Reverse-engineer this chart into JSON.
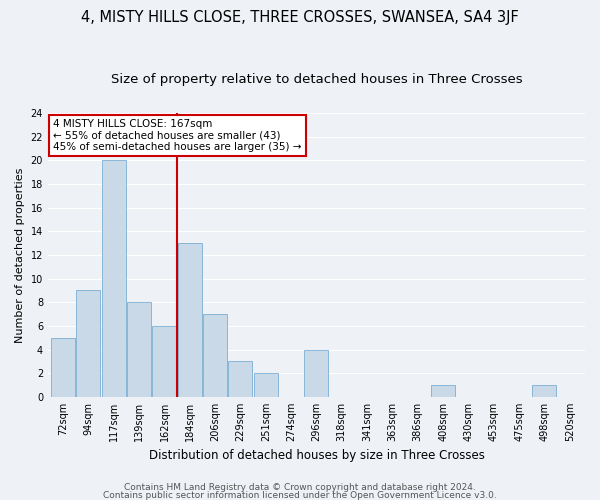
{
  "title": "4, MISTY HILLS CLOSE, THREE CROSSES, SWANSEA, SA4 3JF",
  "subtitle": "Size of property relative to detached houses in Three Crosses",
  "xlabel": "Distribution of detached houses by size in Three Crosses",
  "ylabel": "Number of detached properties",
  "categories": [
    "72sqm",
    "94sqm",
    "117sqm",
    "139sqm",
    "162sqm",
    "184sqm",
    "206sqm",
    "229sqm",
    "251sqm",
    "274sqm",
    "296sqm",
    "318sqm",
    "341sqm",
    "363sqm",
    "386sqm",
    "408sqm",
    "430sqm",
    "453sqm",
    "475sqm",
    "498sqm",
    "520sqm"
  ],
  "values": [
    5,
    9,
    20,
    8,
    6,
    13,
    7,
    3,
    2,
    0,
    4,
    0,
    0,
    0,
    0,
    1,
    0,
    0,
    0,
    1,
    0
  ],
  "bar_color": "#c9d9e8",
  "bar_edge_color": "#7bafd4",
  "vline_index": 4.5,
  "vline_color": "#cc0000",
  "annotation_line1": "4 MISTY HILLS CLOSE: 167sqm",
  "annotation_line2": "← 55% of detached houses are smaller (43)",
  "annotation_line3": "45% of semi-detached houses are larger (35) →",
  "annotation_box_color": "#ffffff",
  "annotation_box_edge": "#cc0000",
  "ylim": [
    0,
    24
  ],
  "yticks": [
    0,
    2,
    4,
    6,
    8,
    10,
    12,
    14,
    16,
    18,
    20,
    22,
    24
  ],
  "footer_line1": "Contains HM Land Registry data © Crown copyright and database right 2024.",
  "footer_line2": "Contains public sector information licensed under the Open Government Licence v3.0.",
  "background_color": "#eef2f7",
  "grid_color": "#ffffff",
  "title_fontsize": 10.5,
  "subtitle_fontsize": 9.5,
  "ylabel_fontsize": 8,
  "xlabel_fontsize": 8.5,
  "tick_fontsize": 7,
  "annot_fontsize": 7.5,
  "footer_fontsize": 6.5
}
